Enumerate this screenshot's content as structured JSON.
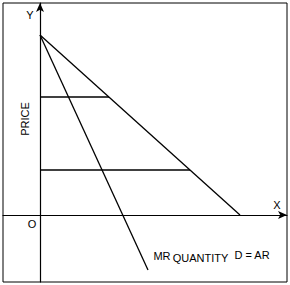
{
  "chart_data": {
    "type": "line",
    "xlabel": "QUANTITY",
    "ylabel": "PRICE",
    "x_axis_symbol": "X",
    "y_axis_symbol": "Y",
    "origin_label": "O",
    "xlim": [
      -37,
      247
    ],
    "ylim": [
      -67,
      212
    ],
    "grid": false,
    "tick_labels": false,
    "color": "#000000",
    "series": [
      {
        "name": "D = AR",
        "x": [
          0,
          200
        ],
        "values": [
          180,
          0
        ]
      },
      {
        "name": "MR",
        "x": [
          0,
          108
        ],
        "values": [
          180,
          -55
        ]
      }
    ],
    "price_lines": [
      {
        "x": [
          0,
          69
        ],
        "values": [
          118,
          118
        ]
      },
      {
        "x": [
          0,
          150
        ],
        "values": [
          45,
          45
        ]
      }
    ]
  }
}
